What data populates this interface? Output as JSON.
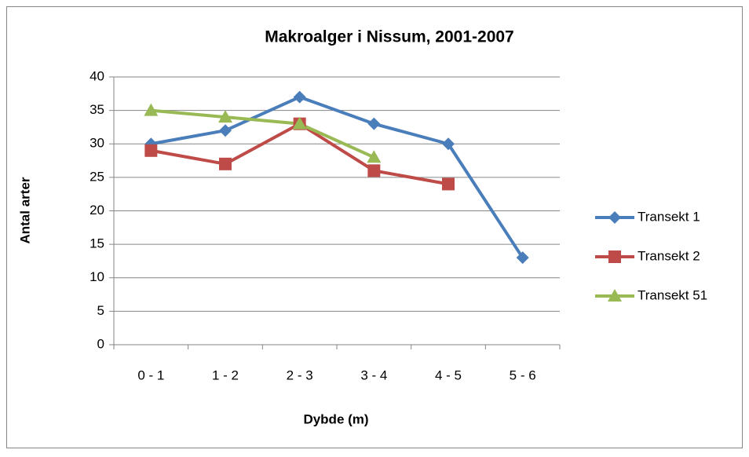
{
  "chart_data": {
    "type": "line",
    "title": "Makroalger i Nissum, 2001-2007",
    "xlabel": "Dybde (m)",
    "ylabel": "Antal arter",
    "categories": [
      "0 - 1",
      "1 - 2",
      "2 - 3",
      "3 - 4",
      "4 - 5",
      "5 - 6"
    ],
    "series": [
      {
        "name": "Transekt 1",
        "color": "#4a7ebb",
        "marker": "diamond",
        "values": [
          30,
          32,
          37,
          33,
          30,
          13
        ]
      },
      {
        "name": "Transekt 2",
        "color": "#be4b48",
        "marker": "square",
        "values": [
          29,
          27,
          33,
          26,
          24,
          null
        ]
      },
      {
        "name": "Transekt 51",
        "color": "#98b954",
        "marker": "triangle",
        "values": [
          35,
          34,
          33,
          28,
          null,
          null
        ]
      }
    ],
    "ylim": [
      0,
      40
    ],
    "yticks": [
      0,
      5,
      10,
      15,
      20,
      25,
      30,
      35,
      40
    ],
    "grid": true,
    "legend": "right"
  }
}
